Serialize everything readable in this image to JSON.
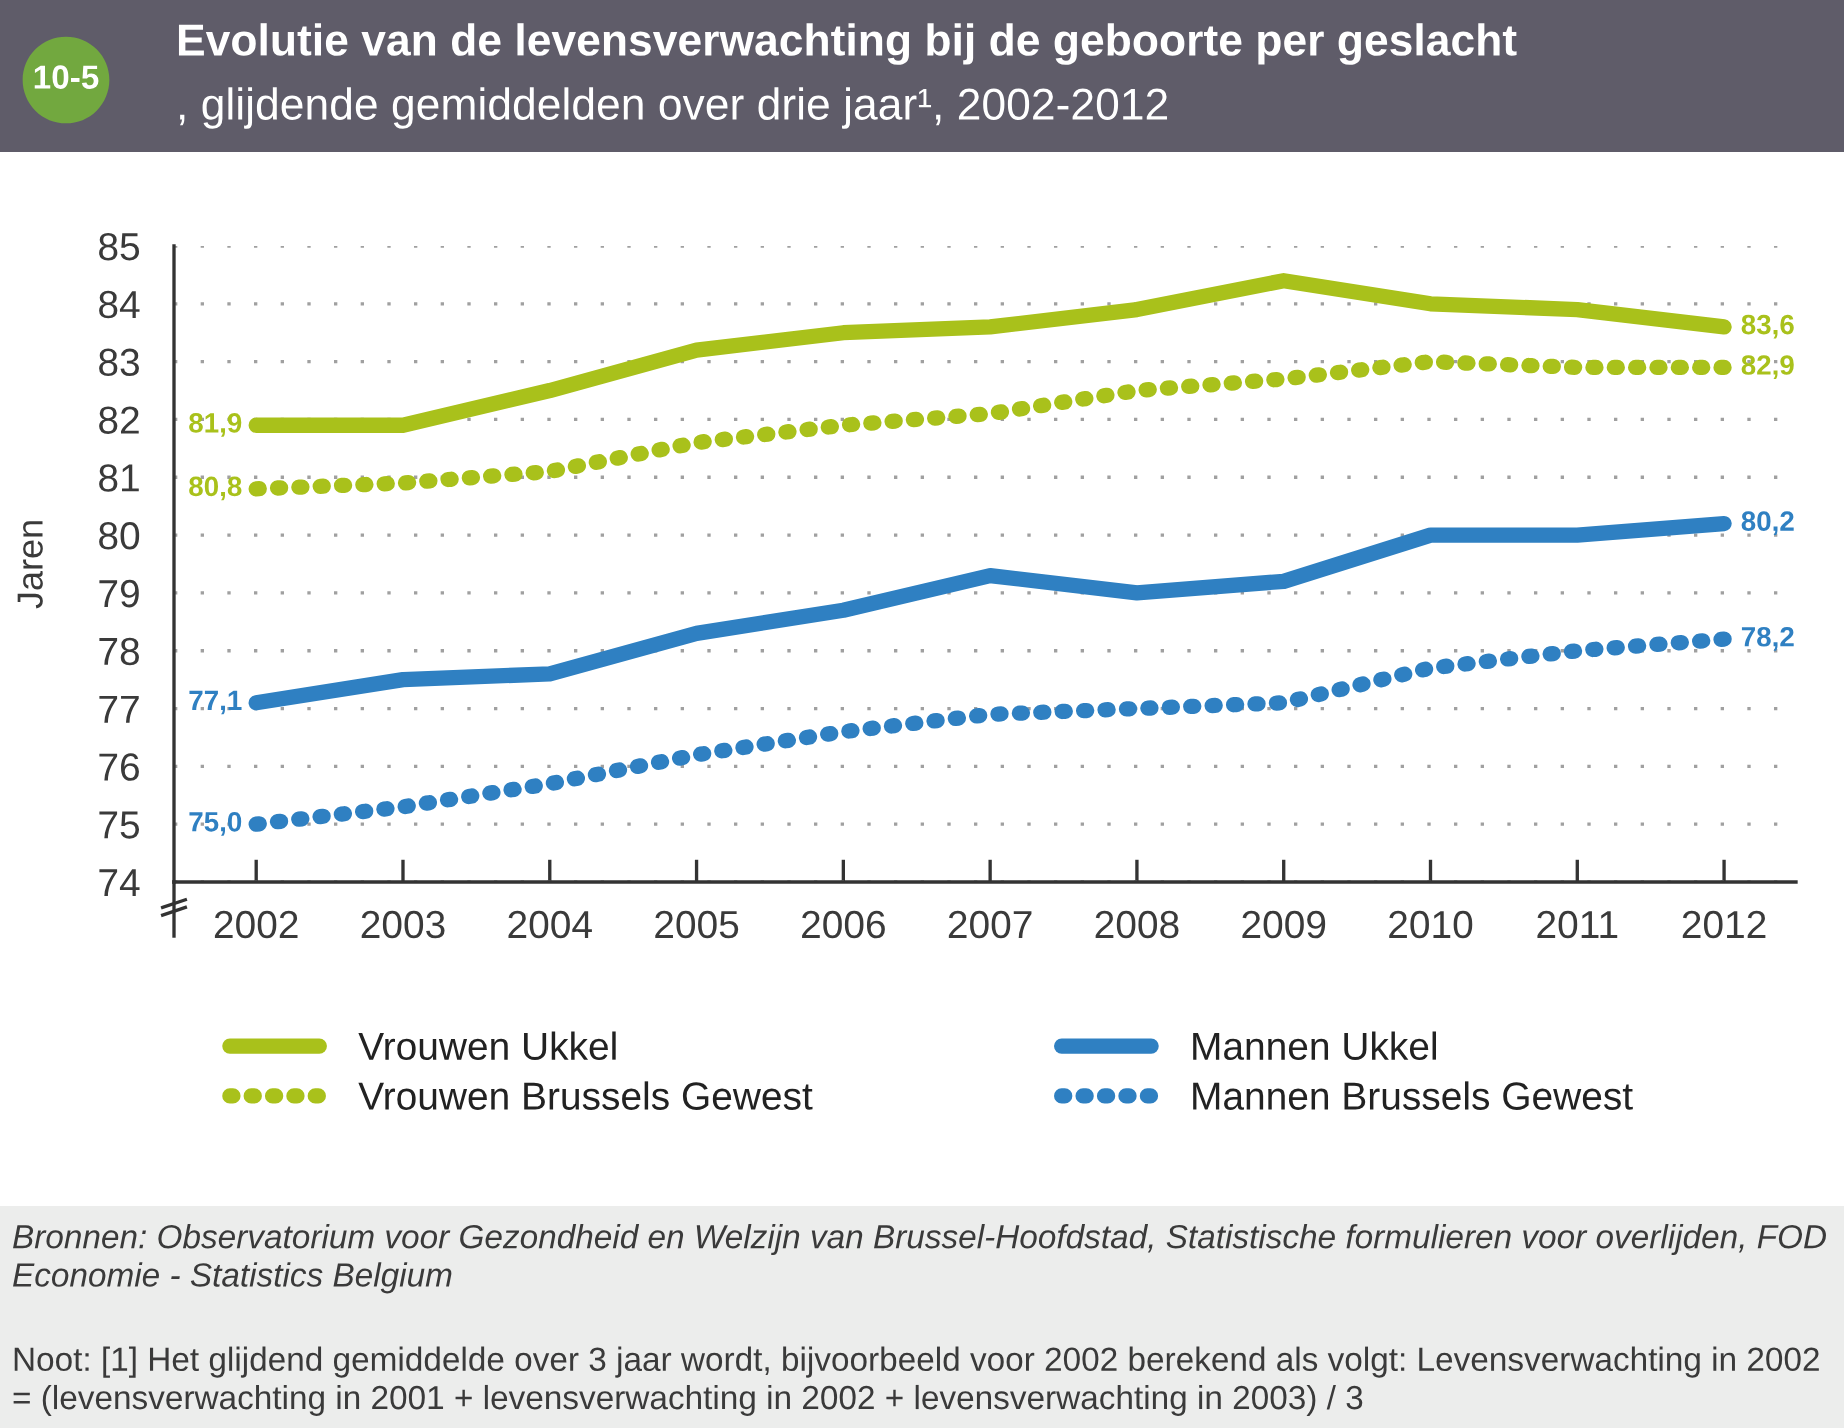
{
  "chart_data": {
    "type": "line",
    "title": "Evolutie van de levensverwachting bij de geboorte per geslacht",
    "subtitle": ", glijdende gemiddelden over drie jaar¹, 2002-2012",
    "ylabel": "Jaren",
    "annotations": [
      "10-5",
      "Bronnen: Observatorium voor Gezondheid en Welzijn van Brussel-Hoofdstad, Statistische formulieren voor overlijden, FOD Economie - Statistics Belgium",
      "Noot: [1] Het glijdend gemiddelde over 3 jaar wordt, bijvoorbeeld voor 2002 berekend als volgt: Levensverwachting in 2002 = (levensverwachting in 2001 + levensverwachting in 2002 + levensverwachting in 2003) / 3"
    ],
    "categories": [
      "2002",
      "2003",
      "2004",
      "2005",
      "2006",
      "2007",
      "2008",
      "2009",
      "2010",
      "2011",
      "2012"
    ],
    "series": [
      {
        "name": "Vrouwen Ukkel",
        "color": "#a9c11b",
        "line_style": "solid",
        "values": [
          81.9,
          81.9,
          82.5,
          83.2,
          83.5,
          83.6,
          83.9,
          84.4,
          84.0,
          83.9,
          83.6
        ],
        "value_labels": [
          "81,9",
          null,
          null,
          null,
          null,
          null,
          null,
          null,
          null,
          null,
          "83,6"
        ]
      },
      {
        "name": "Vrouwen Brussels Gewest",
        "color": "#a9c11b",
        "line_style": "dotted",
        "values": [
          80.8,
          80.9,
          81.1,
          81.6,
          81.9,
          82.1,
          82.5,
          82.7,
          83.0,
          82.9,
          82.9
        ],
        "value_labels": [
          "80,8",
          null,
          null,
          null,
          null,
          null,
          null,
          null,
          null,
          null,
          "82,9"
        ]
      },
      {
        "name": "Mannen Ukkel",
        "color": "#2f80c2",
        "line_style": "solid",
        "values": [
          77.1,
          77.5,
          77.6,
          78.3,
          78.7,
          79.3,
          79.0,
          79.2,
          80.0,
          80.0,
          80.2
        ],
        "value_labels": [
          "77,1",
          null,
          null,
          null,
          null,
          null,
          null,
          null,
          null,
          null,
          "80,2"
        ]
      },
      {
        "name": "Mannen Brussels Gewest",
        "color": "#2f80c2",
        "line_style": "dotted",
        "values": [
          75.0,
          75.3,
          75.7,
          76.2,
          76.6,
          76.9,
          77.0,
          77.1,
          77.7,
          78.0,
          78.2
        ],
        "value_labels": [
          "75,0",
          null,
          null,
          null,
          null,
          null,
          null,
          null,
          null,
          null,
          "78,2"
        ]
      }
    ],
    "ylim": [
      74,
      85
    ],
    "yticks": [
      74,
      75,
      76,
      77,
      78,
      79,
      80,
      81,
      82,
      83,
      84,
      85
    ],
    "grid": "y",
    "legend": "bottom"
  }
}
